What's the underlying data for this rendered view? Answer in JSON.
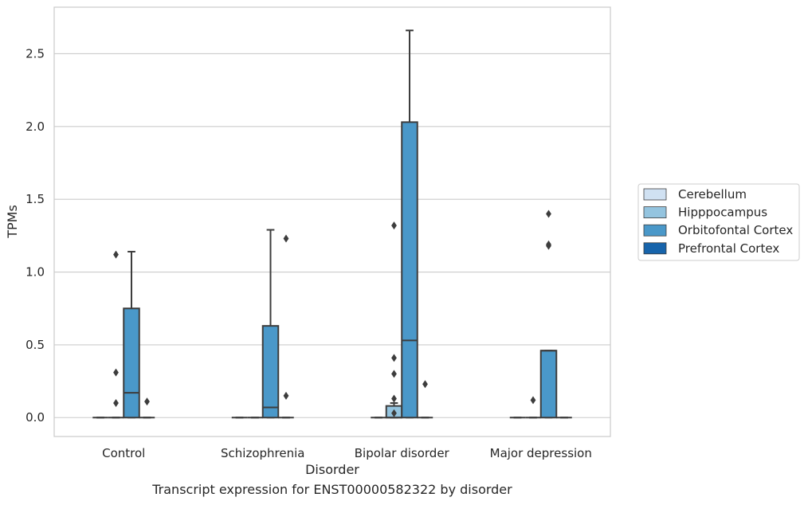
{
  "caption": "Transcript expression for ENST00000582322 by disorder",
  "chart_data": {
    "type": "boxplot",
    "xlabel": "Disorder",
    "ylabel": "TPMs",
    "ylim": [
      -0.13,
      2.82
    ],
    "yticks": [
      0.0,
      0.5,
      1.0,
      1.5,
      2.0,
      2.5
    ],
    "ytick_labels": [
      "0.0",
      "0.5",
      "1.0",
      "1.5",
      "2.0",
      "2.5"
    ],
    "grid": "horizontal",
    "legend_placement": "right",
    "categories": [
      "Control",
      "Schizophrenia",
      "Bipolar disorder",
      "Major depression"
    ],
    "series": [
      {
        "name": "Cerebellum",
        "color": "#d0e1f2",
        "boxes": [
          {
            "q1": 0,
            "median": 0,
            "q3": 0,
            "whisker_low": 0,
            "whisker_high": 0,
            "outliers": []
          },
          {
            "q1": 0,
            "median": 0,
            "q3": 0,
            "whisker_low": 0,
            "whisker_high": 0,
            "outliers": []
          },
          {
            "q1": 0,
            "median": 0,
            "q3": 0,
            "whisker_low": 0,
            "whisker_high": 0,
            "outliers": []
          },
          {
            "q1": 0,
            "median": 0,
            "q3": 0,
            "whisker_low": 0,
            "whisker_high": 0,
            "outliers": []
          }
        ]
      },
      {
        "name": "Hipppocampus",
        "color": "#94c4df",
        "boxes": [
          {
            "q1": 0,
            "median": 0,
            "q3": 0,
            "whisker_low": 0,
            "whisker_high": 0,
            "outliers": [
              0.1,
              0.31,
              1.12
            ]
          },
          {
            "q1": 0,
            "median": 0,
            "q3": 0,
            "whisker_low": 0,
            "whisker_high": 0,
            "outliers": []
          },
          {
            "q1": 0,
            "median": 0,
            "q3": 0.08,
            "whisker_low": 0,
            "whisker_high": 0.1,
            "outliers": [
              0.03,
              0.13,
              0.3,
              0.41,
              1.32
            ]
          },
          {
            "q1": 0,
            "median": 0,
            "q3": 0,
            "whisker_low": 0,
            "whisker_high": 0,
            "outliers": [
              0.12
            ]
          }
        ]
      },
      {
        "name": "Orbitofontal Cortex",
        "color": "#4a98c9",
        "boxes": [
          {
            "q1": 0,
            "median": 0.17,
            "q3": 0.75,
            "whisker_low": 0,
            "whisker_high": 1.14,
            "outliers": []
          },
          {
            "q1": 0,
            "median": 0.07,
            "q3": 0.63,
            "whisker_low": 0,
            "whisker_high": 1.29,
            "outliers": []
          },
          {
            "q1": 0,
            "median": 0.53,
            "q3": 2.03,
            "whisker_low": 0,
            "whisker_high": 2.66,
            "outliers": []
          },
          {
            "q1": 0,
            "median": 0.46,
            "q3": 0.46,
            "whisker_low": 0,
            "whisker_high": 0.46,
            "outliers": [
              1.18,
              1.19,
              1.4
            ]
          }
        ]
      },
      {
        "name": "Prefrontal Cortex",
        "color": "#1764ab",
        "boxes": [
          {
            "q1": 0,
            "median": 0,
            "q3": 0,
            "whisker_low": 0,
            "whisker_high": 0,
            "outliers": [
              0.11
            ]
          },
          {
            "q1": 0,
            "median": 0,
            "q3": 0,
            "whisker_low": 0,
            "whisker_high": 0,
            "outliers": [
              0.15,
              1.23
            ]
          },
          {
            "q1": 0,
            "median": 0,
            "q3": 0,
            "whisker_low": 0,
            "whisker_high": 0,
            "outliers": [
              0.23
            ]
          },
          {
            "q1": 0,
            "median": 0,
            "q3": 0,
            "whisker_low": 0,
            "whisker_high": 0,
            "outliers": []
          }
        ]
      }
    ]
  }
}
